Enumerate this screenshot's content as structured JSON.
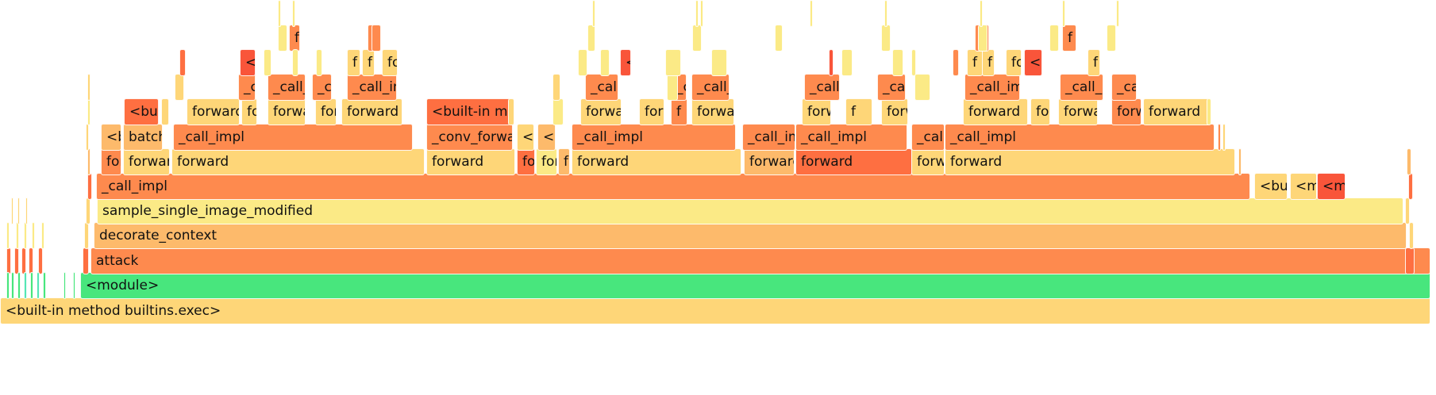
{
  "view": "flame graph",
  "frames": {
    "builtin_exec": "<built-in method builtins.exec>",
    "module": "<module>",
    "attack": "attack",
    "decorate_context": "decorate_context",
    "sample_single_image_modified": "sample_single_image_modified",
    "call_impl": "_call_impl",
    "forward": "forward",
    "batch": "batch",
    "builtin_m": "<built-in m",
    "conv_forward": "_conv_forward",
    "builtin_short": "<bu",
    "builtin_m_short": "<m",
    "f_short": "f"
  },
  "colors": {
    "yellow": "#fed678",
    "light_orange": "#fdba6b",
    "orange": "#fe8a4e",
    "red_orange": "#fe6f41",
    "pale_yellow": "#fbea86",
    "red": "#f9553a",
    "module_green": "#48e67d",
    "teal": "#55e6b5"
  }
}
